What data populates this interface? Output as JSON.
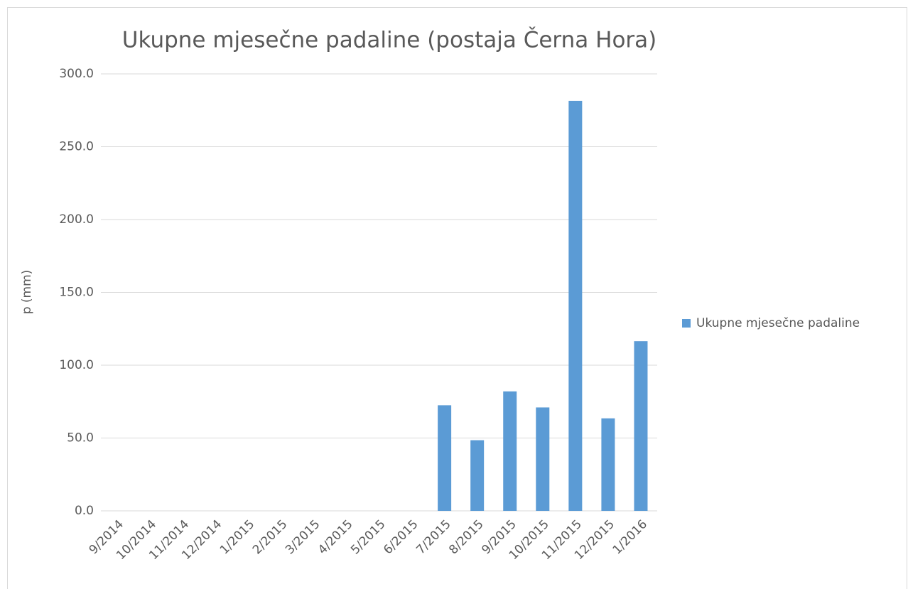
{
  "chart_data": {
    "type": "bar",
    "title": "Ukupne mjesečne padaline (postaja Černa Hora)",
    "y_label": "p (mm)",
    "categories": [
      "9/2014",
      "10/2014",
      "11/2014",
      "12/2014",
      "1/2015",
      "2/2015",
      "3/2015",
      "4/2015",
      "5/2015",
      "6/2015",
      "7/2015",
      "8/2015",
      "9/2015",
      "10/2015",
      "11/2015",
      "12/2015",
      "1/2016"
    ],
    "series": [
      {
        "name": "Ukupne mjesečne padaline",
        "color": "#5b9bd5",
        "values": [
          null,
          null,
          null,
          null,
          null,
          null,
          null,
          null,
          null,
          null,
          72.5,
          48.5,
          82,
          71,
          281.5,
          63.5,
          116.5
        ]
      }
    ],
    "ylim": [
      0,
      300
    ],
    "yticks": [
      {
        "value": 0,
        "label": "0.0"
      },
      {
        "value": 50,
        "label": "50.0"
      },
      {
        "value": 100,
        "label": "100.0"
      },
      {
        "value": 150,
        "label": "150.0"
      },
      {
        "value": 200,
        "label": "200.0"
      },
      {
        "value": 250,
        "label": "250.0"
      },
      {
        "value": 300,
        "label": "300.0"
      }
    ],
    "grid": true,
    "legend": "right"
  }
}
